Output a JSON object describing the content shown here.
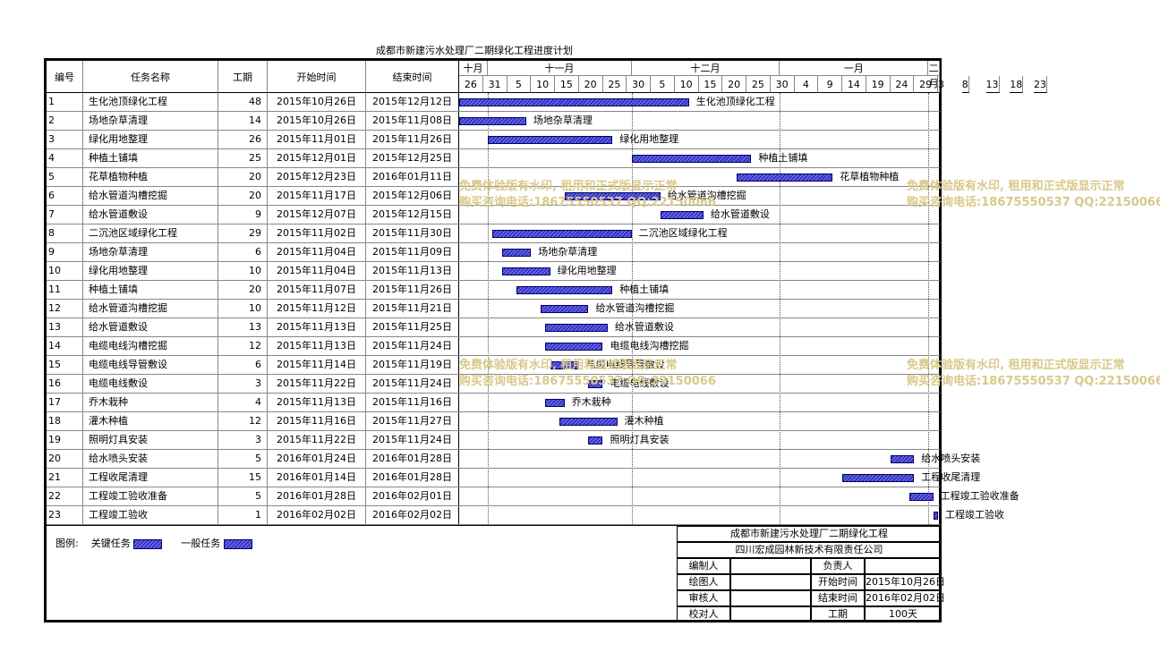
{
  "title": "成都市新建污水处理厂二期绿化工程进度计划",
  "headers": {
    "id": "编号",
    "name": "任务名称",
    "duration": "工期",
    "start": "开始时间",
    "end": "结束时间"
  },
  "months": [
    "十月",
    "十一月",
    "十二月",
    "一月",
    "二月"
  ],
  "days": [
    "26",
    "31",
    "5",
    "10",
    "15",
    "20",
    "25",
    "30",
    "5",
    "10",
    "15",
    "20",
    "25",
    "30",
    "4",
    "9",
    "14",
    "19",
    "24",
    "29",
    "3",
    "8",
    "13",
    "18",
    "23"
  ],
  "tasks": [
    {
      "id": "1",
      "name": "生化池顶绿化工程",
      "duration": "48",
      "start": "2015年10月26日",
      "end": "2015年12月12日",
      "label": "生化池顶绿化工程"
    },
    {
      "id": "2",
      "name": "场地杂草清理",
      "duration": "14",
      "start": "2015年10月26日",
      "end": "2015年11月08日",
      "label": "场地杂草清理"
    },
    {
      "id": "3",
      "name": "绿化用地整理",
      "duration": "26",
      "start": "2015年11月01日",
      "end": "2015年11月26日",
      "label": "绿化用地整理"
    },
    {
      "id": "4",
      "name": "种植土铺填",
      "duration": "25",
      "start": "2015年12月01日",
      "end": "2015年12月25日",
      "label": "种植土铺填"
    },
    {
      "id": "5",
      "name": "花草植物种植",
      "duration": "20",
      "start": "2015年12月23日",
      "end": "2016年01月11日",
      "label": "花草植物种植"
    },
    {
      "id": "6",
      "name": "给水管道沟槽挖掘",
      "duration": "20",
      "start": "2015年11月17日",
      "end": "2015年12月06日",
      "label": "给水管道沟槽挖掘"
    },
    {
      "id": "7",
      "name": "给水管道敷设",
      "duration": "9",
      "start": "2015年12月07日",
      "end": "2015年12月15日",
      "label": "给水管道敷设"
    },
    {
      "id": "8",
      "name": "二沉池区域绿化工程",
      "duration": "29",
      "start": "2015年11月02日",
      "end": "2015年11月30日",
      "label": "二沉池区域绿化工程"
    },
    {
      "id": "9",
      "name": "场地杂草清理",
      "duration": "6",
      "start": "2015年11月04日",
      "end": "2015年11月09日",
      "label": "场地杂草清理"
    },
    {
      "id": "10",
      "name": "绿化用地整理",
      "duration": "10",
      "start": "2015年11月04日",
      "end": "2015年11月13日",
      "label": "绿化用地整理"
    },
    {
      "id": "11",
      "name": "种植土铺填",
      "duration": "20",
      "start": "2015年11月07日",
      "end": "2015年11月26日",
      "label": "种植土铺填"
    },
    {
      "id": "12",
      "name": "给水管道沟槽挖掘",
      "duration": "10",
      "start": "2015年11月12日",
      "end": "2015年11月21日",
      "label": "给水管道沟槽挖掘"
    },
    {
      "id": "13",
      "name": "给水管道敷设",
      "duration": "13",
      "start": "2015年11月13日",
      "end": "2015年11月25日",
      "label": "给水管道敷设"
    },
    {
      "id": "14",
      "name": "电缆电线沟槽挖掘",
      "duration": "12",
      "start": "2015年11月13日",
      "end": "2015年11月24日",
      "label": "电缆电线沟槽挖掘"
    },
    {
      "id": "15",
      "name": "电缆电线导管敷设",
      "duration": "6",
      "start": "2015年11月14日",
      "end": "2015年11月19日",
      "label": "电缆电线导管敷设"
    },
    {
      "id": "16",
      "name": "电缆电线敷设",
      "duration": "3",
      "start": "2015年11月22日",
      "end": "2015年11月24日",
      "label": "电缆电线敷设"
    },
    {
      "id": "17",
      "name": "乔木栽种",
      "duration": "4",
      "start": "2015年11月13日",
      "end": "2015年11月16日",
      "label": "乔木栽种"
    },
    {
      "id": "18",
      "name": "灌木种植",
      "duration": "12",
      "start": "2015年11月16日",
      "end": "2015年11月27日",
      "label": "灌木种植"
    },
    {
      "id": "19",
      "name": "照明灯具安装",
      "duration": "3",
      "start": "2015年11月22日",
      "end": "2015年11月24日",
      "label": "照明灯具安装"
    },
    {
      "id": "20",
      "name": "给水喷头安装",
      "duration": "5",
      "start": "2016年01月24日",
      "end": "2016年01月28日",
      "label": "给水喷头安装"
    },
    {
      "id": "21",
      "name": "工程收尾清理",
      "duration": "15",
      "start": "2016年01月14日",
      "end": "2016年01月28日",
      "label": "工程收尾清理"
    },
    {
      "id": "22",
      "name": "工程竣工验收准备",
      "duration": "5",
      "start": "2016年01月28日",
      "end": "2016年02月01日",
      "label": "工程竣工验收准备"
    },
    {
      "id": "23",
      "name": "工程竣工验收",
      "duration": "1",
      "start": "2016年02月02日",
      "end": "2016年02月02日",
      "label": "工程竣工验收"
    }
  ],
  "legend": {
    "title": "图例:",
    "critical": "关键任务",
    "normal": "一般任务"
  },
  "infobox": {
    "project": "成都市新建污水处理厂二期绿化工程",
    "company": "四川宏成园林新技术有限责任公司",
    "editor_label": "编制人",
    "responsible_label": "负责人",
    "drawer_label": "绘图人",
    "start_label": "开始时间",
    "start_value": "2015年10月26日",
    "reviewer_label": "审核人",
    "end_label": "结束时间",
    "end_value": "2016年02月02日",
    "checker_label": "校对人",
    "duration_label": "工期",
    "duration_value": "100天"
  },
  "watermark": {
    "line1": "免费体验版有水印, 租用和正式版显示正常",
    "line2": "购买咨询电话:18675550537 QQ:22150066"
  },
  "colors": {
    "bar": "#3333cc",
    "watermark": "#d8c98a"
  }
}
